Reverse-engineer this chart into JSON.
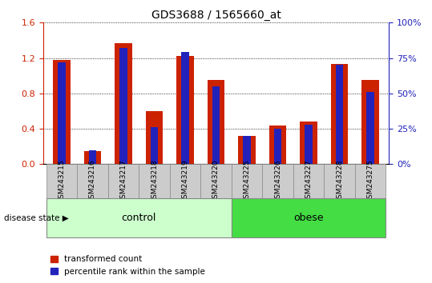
{
  "title": "GDS3688 / 1565660_at",
  "samples": [
    "GSM243215",
    "GSM243216",
    "GSM243217",
    "GSM243218",
    "GSM243219",
    "GSM243220",
    "GSM243225",
    "GSM243226",
    "GSM243227",
    "GSM243228",
    "GSM243275"
  ],
  "red_values": [
    1.18,
    0.15,
    1.37,
    0.6,
    1.22,
    0.95,
    0.32,
    0.44,
    0.48,
    1.13,
    0.95
  ],
  "blue_pct": [
    72,
    10,
    82,
    26,
    79,
    55,
    20,
    25,
    28,
    70,
    51
  ],
  "red_color": "#cc2200",
  "blue_color": "#2222bb",
  "ylim_left": [
    0,
    1.6
  ],
  "ylim_right": [
    0,
    100
  ],
  "yticks_left": [
    0,
    0.4,
    0.8,
    1.2,
    1.6
  ],
  "yticks_right": [
    0,
    25,
    50,
    75,
    100
  ],
  "ytick_labels_right": [
    "0%",
    "25%",
    "50%",
    "75%",
    "100%"
  ],
  "ctrl_count": 6,
  "obese_count": 5,
  "control_label": "control",
  "obese_label": "obese",
  "disease_label": "disease state",
  "legend_red": "transformed count",
  "legend_blue": "percentile rank within the sample",
  "bar_width": 0.55,
  "blue_bar_width": 0.25,
  "group_box_color": "#cccccc",
  "control_color": "#ccffcc",
  "obese_color": "#44dd44",
  "left_spine_color": "#cc2200",
  "right_spine_color": "#2222bb"
}
